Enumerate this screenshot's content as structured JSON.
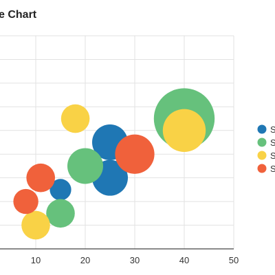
{
  "chart_data": {
    "type": "scatter",
    "variant": "bubble",
    "title": "e Chart",
    "xlabel": "",
    "ylabel": "",
    "xlim": [
      0,
      50
    ],
    "ylim": [
      0,
      90
    ],
    "x_ticks": [
      0,
      10,
      20,
      30,
      40,
      50
    ],
    "x_tick_labels": [
      "",
      "10",
      "20",
      "30",
      "40",
      "50"
    ],
    "y_grid": [
      10,
      20,
      30,
      40,
      50,
      60,
      70,
      80,
      90
    ],
    "grid": true,
    "legend_position": "right",
    "series": [
      {
        "label": "S",
        "color": "#1f77b4",
        "points": [
          {
            "x": 25,
            "y": 45,
            "r": 10
          },
          {
            "x": 25,
            "y": 30,
            "r": 10
          },
          {
            "x": 15,
            "y": 25,
            "r": 6
          }
        ]
      },
      {
        "label": "S",
        "color": "#66c17c",
        "points": [
          {
            "x": 40,
            "y": 55,
            "r": 17
          },
          {
            "x": 20,
            "y": 35,
            "r": 10
          },
          {
            "x": 15,
            "y": 15,
            "r": 8
          }
        ]
      },
      {
        "label": "S",
        "color": "#f9d246",
        "points": [
          {
            "x": 18,
            "y": 55,
            "r": 8
          },
          {
            "x": 40,
            "y": 50,
            "r": 12
          },
          {
            "x": 10,
            "y": 10,
            "r": 8
          }
        ]
      },
      {
        "label": "S",
        "color": "#f0613b",
        "points": [
          {
            "x": 30,
            "y": 40,
            "r": 11
          },
          {
            "x": 11,
            "y": 30,
            "r": 8
          },
          {
            "x": 8,
            "y": 20,
            "r": 7
          }
        ]
      }
    ]
  }
}
